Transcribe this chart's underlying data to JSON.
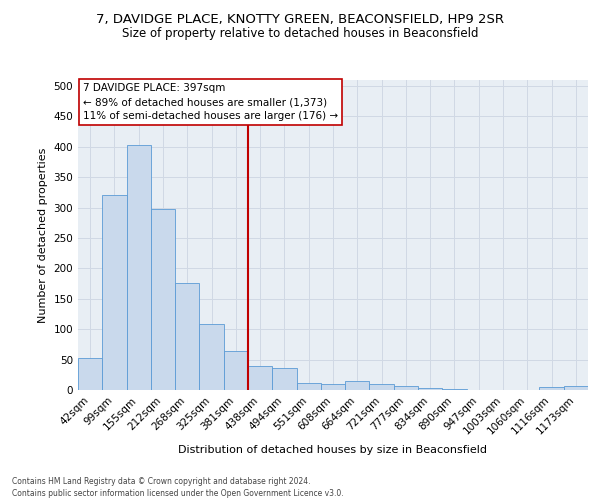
{
  "title1": "7, DAVIDGE PLACE, KNOTTY GREEN, BEACONSFIELD, HP9 2SR",
  "title2": "Size of property relative to detached houses in Beaconsfield",
  "xlabel": "Distribution of detached houses by size in Beaconsfield",
  "ylabel": "Number of detached properties",
  "footnote": "Contains HM Land Registry data © Crown copyright and database right 2024.\nContains public sector information licensed under the Open Government Licence v3.0.",
  "categories": [
    "42sqm",
    "99sqm",
    "155sqm",
    "212sqm",
    "268sqm",
    "325sqm",
    "381sqm",
    "438sqm",
    "494sqm",
    "551sqm",
    "608sqm",
    "664sqm",
    "721sqm",
    "777sqm",
    "834sqm",
    "890sqm",
    "947sqm",
    "1003sqm",
    "1060sqm",
    "1116sqm",
    "1173sqm"
  ],
  "values": [
    53,
    320,
    403,
    297,
    176,
    108,
    64,
    40,
    36,
    11,
    10,
    15,
    10,
    7,
    4,
    1,
    0,
    0,
    0,
    5,
    6
  ],
  "bar_color": "#c9d9ec",
  "bar_edge_color": "#5b9bd5",
  "vline_x": 6.5,
  "vline_color": "#c00000",
  "annotation_line1": "7 DAVIDGE PLACE: 397sqm",
  "annotation_line2": "← 89% of detached houses are smaller (1,373)",
  "annotation_line3": "11% of semi-detached houses are larger (176) →",
  "ann_box_color": "#c00000",
  "ann_text_color": "#000000",
  "ann_bg_color": "#ffffff",
  "ylim": [
    0,
    510
  ],
  "yticks": [
    0,
    50,
    100,
    150,
    200,
    250,
    300,
    350,
    400,
    450,
    500
  ],
  "grid_color": "#d0d8e4",
  "background_color": "#e8eef4",
  "title1_fontsize": 9.5,
  "title2_fontsize": 8.5,
  "xlabel_fontsize": 8.0,
  "ylabel_fontsize": 8.0,
  "tick_fontsize": 7.5,
  "ann_fontsize": 7.5,
  "footnote_fontsize": 5.5
}
